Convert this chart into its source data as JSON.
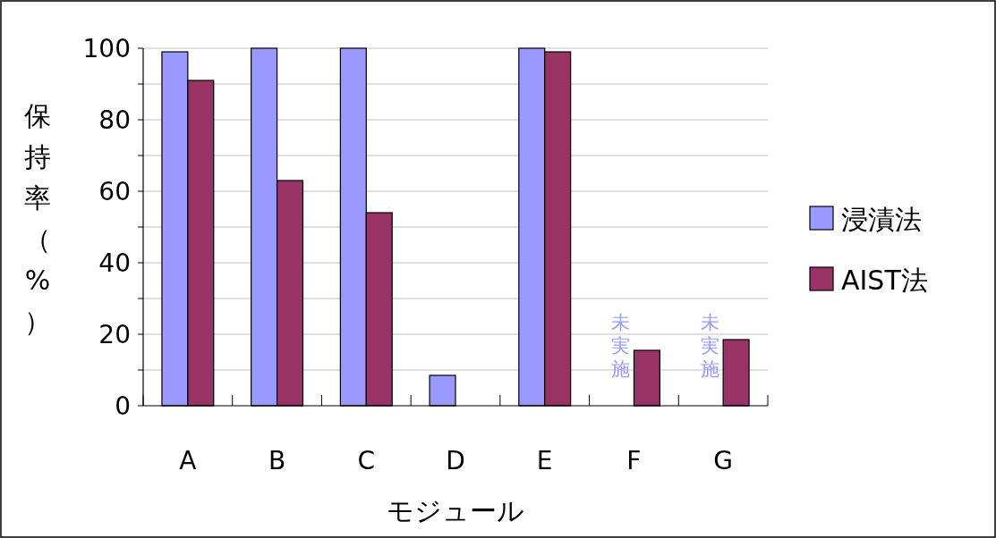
{
  "chart_data": {
    "type": "bar",
    "ylabel": "保持率（%）",
    "xlabel": "モジュール",
    "categories": [
      "A",
      "B",
      "C",
      "D",
      "E",
      "F",
      "G"
    ],
    "series": [
      {
        "name": "浸漬法",
        "color": "#9999ff",
        "values": [
          99,
          100,
          100,
          8.5,
          100,
          null,
          null
        ]
      },
      {
        "name": "AIST法",
        "color": "#993366",
        "values": [
          91,
          63,
          54,
          null,
          99,
          15.5,
          18.5
        ]
      }
    ],
    "ylim": [
      0,
      100
    ],
    "yticks": [
      0,
      {
        "value": 10,
        "label": null
      },
      20,
      {
        "value": 30,
        "label": null
      },
      40,
      {
        "value": 50,
        "label": null
      },
      60,
      {
        "value": 70,
        "label": null
      },
      80,
      {
        "value": 90,
        "label": null
      },
      100
    ],
    "grid": "y",
    "legend": "right",
    "annotations": [
      "未実施",
      "未実施"
    ]
  }
}
